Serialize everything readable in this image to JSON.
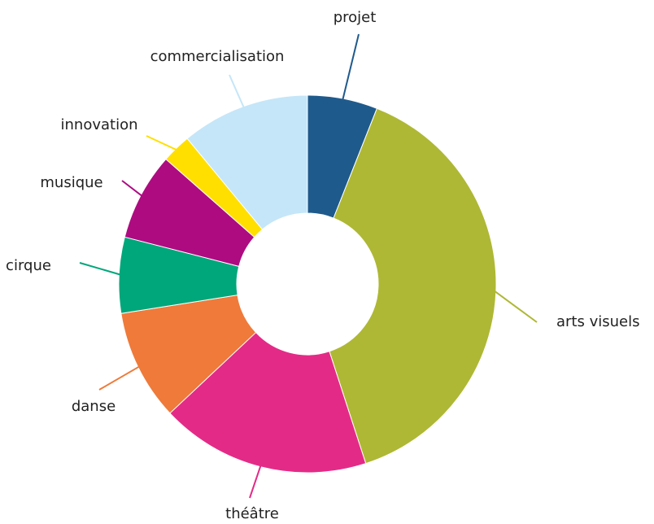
{
  "chart_data": {
    "type": "donut",
    "categories": [
      "projet",
      "arts visuels",
      "théâtre",
      "danse",
      "cirque",
      "musique",
      "innovation",
      "commercialisation"
    ],
    "values": [
      6,
      39,
      18,
      9.5,
      6.5,
      7.5,
      2.5,
      11
    ],
    "colors": [
      "#1f5a8c",
      "#aeb834",
      "#e42a87",
      "#ef7a3a",
      "#00a77a",
      "#ae0b81",
      "#ffdf00",
      "#c5e6f8"
    ]
  }
}
